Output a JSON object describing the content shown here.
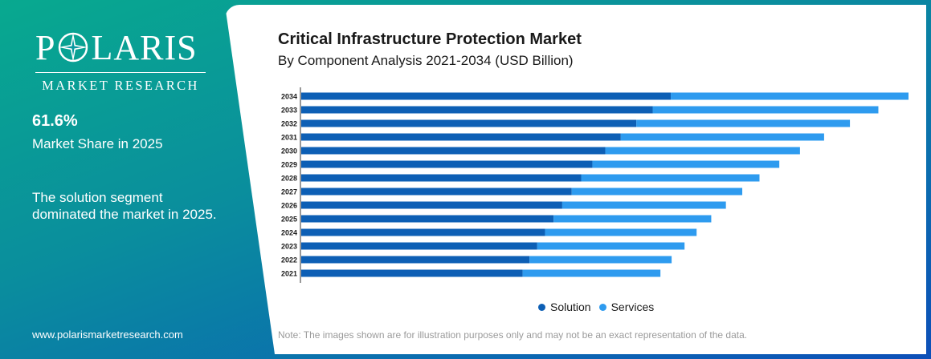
{
  "brand": {
    "name_part1": "P",
    "name_part2": "LARIS",
    "tagline": "MARKET RESEARCH",
    "website": "www.polarismarketresearch.com"
  },
  "highlight": {
    "value": "61.6%",
    "label": "Market Share in 2025",
    "description": "The solution segment dominated the market in 2025."
  },
  "note": "Note: The images shown are for illustration purposes only and may not be an exact representation of the data.",
  "colors": {
    "solution": "#0d5fb5",
    "services": "#2e9bef"
  },
  "chart_data": {
    "type": "bar",
    "orientation": "horizontal",
    "stacked": true,
    "title": "Critical Infrastructure Protection Market",
    "subtitle": "By Component Analysis 2021-2034 (USD Billion)",
    "categories": [
      "2034",
      "2033",
      "2032",
      "2031",
      "2030",
      "2029",
      "2028",
      "2027",
      "2026",
      "2025",
      "2024",
      "2023",
      "2022",
      "2021"
    ],
    "series": [
      {
        "name": "Solution",
        "values": [
          214.5,
          204.0,
          194.5,
          185.5,
          176.5,
          169.0,
          162.5,
          157.0,
          151.5,
          146.5,
          141.5,
          137.0,
          132.5,
          128.5
        ]
      },
      {
        "name": "Services",
        "values": [
          138.0,
          131.0,
          124.0,
          118.0,
          113.0,
          108.5,
          103.5,
          99.0,
          95.0,
          91.5,
          88.0,
          85.5,
          82.5,
          80.0
        ]
      }
    ],
    "legend_position": "bottom-center",
    "grid": false
  }
}
